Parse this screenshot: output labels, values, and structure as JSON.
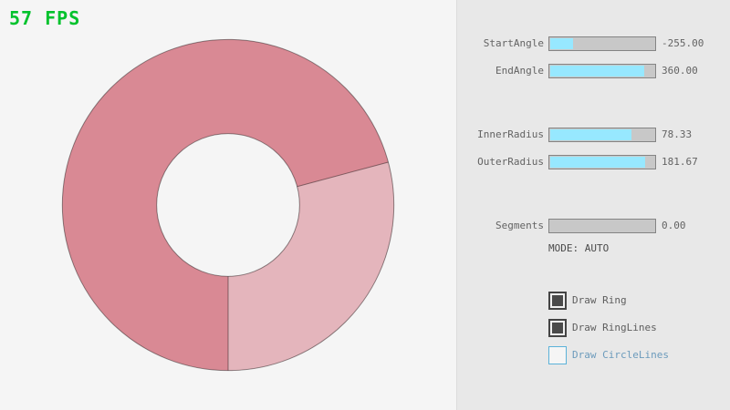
{
  "fps": {
    "label": "57 FPS",
    "color": "#00c22c"
  },
  "ring": {
    "outer_radius": 181.67,
    "inner_radius": 78.33,
    "start_angle": -255.0,
    "end_angle": 360.0,
    "color_single": "#e4b5bc",
    "color_overlap": "#d98994",
    "line_color": "rgba(0,0,0,0.42)",
    "single_sector": {
      "start_deg": -15,
      "end_deg": 90
    }
  },
  "panel": {
    "sliders": [
      {
        "label": "StartAngle",
        "value": "-255.00",
        "fill": 0.217
      },
      {
        "label": "EndAngle",
        "value": "360.00",
        "fill": 0.9
      },
      {
        "label": "InnerRadius",
        "value": "78.33",
        "fill": 0.783
      },
      {
        "label": "OuterRadius",
        "value": "181.67",
        "fill": 0.908
      },
      {
        "label": "Segments",
        "value": "0.00",
        "fill": 0.0
      }
    ],
    "mode_text": "MODE: AUTO",
    "checkboxes": [
      {
        "label": "Draw Ring",
        "checked": true
      },
      {
        "label": "Draw RingLines",
        "checked": true
      },
      {
        "label": "Draw CircleLines",
        "checked": false
      }
    ],
    "accent_color": "#97e8ff",
    "track_color": "#c8c8c8",
    "border_color": "#848484",
    "text_color": "#636363"
  }
}
